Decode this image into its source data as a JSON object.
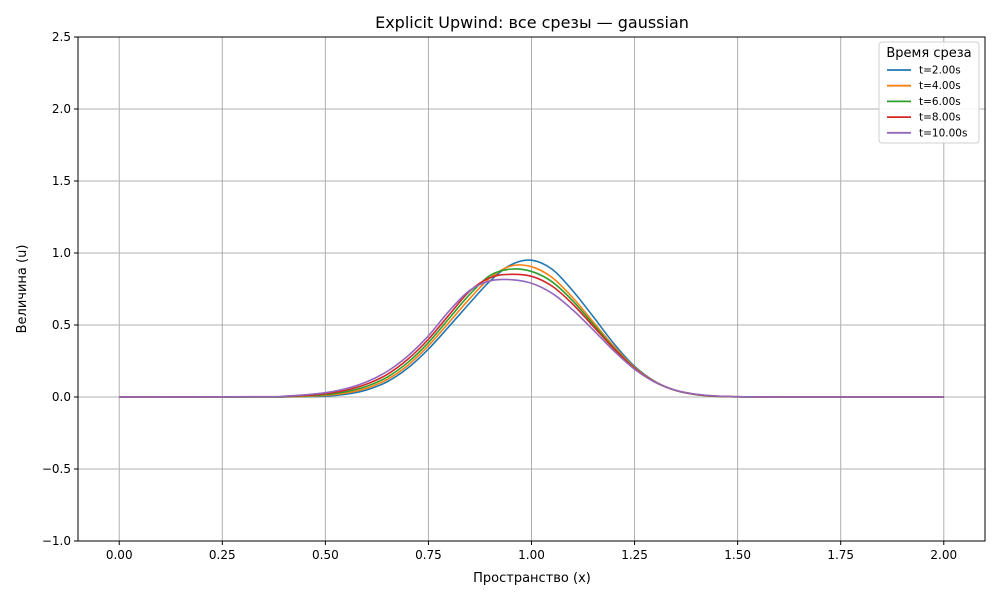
{
  "chart_data": {
    "type": "line",
    "title": "Explicit Upwind: все срезы — gaussian",
    "xlabel": "Пространство (x)",
    "ylabel": "Величина (u)",
    "xlim": [
      -0.1,
      2.1
    ],
    "ylim": [
      -1.0,
      2.5
    ],
    "xticks": [
      "0.00",
      "0.25",
      "0.50",
      "0.75",
      "1.00",
      "1.25",
      "1.50",
      "1.75",
      "2.00"
    ],
    "yticks": [
      "−1.0",
      "−0.5",
      "0.0",
      "0.5",
      "1.0",
      "1.5",
      "2.0",
      "2.5"
    ],
    "grid": true,
    "legend": {
      "title": "Время среза",
      "placement": "top-right"
    },
    "x": [
      0.0,
      0.35,
      0.4,
      0.45,
      0.5,
      0.55,
      0.6,
      0.65,
      0.7,
      0.75,
      0.8,
      0.85,
      0.9,
      0.95,
      1.0,
      1.05,
      1.1,
      1.15,
      1.2,
      1.25,
      1.3,
      1.35,
      1.4,
      1.45,
      1.5,
      1.55,
      1.6,
      2.0
    ],
    "series": [
      {
        "name": "t=2.00s",
        "color": "#1f77b4",
        "values": [
          0.0,
          0.0,
          0.0,
          0.002,
          0.006,
          0.019,
          0.049,
          0.106,
          0.201,
          0.333,
          0.49,
          0.652,
          0.807,
          0.918,
          0.95,
          0.887,
          0.738,
          0.557,
          0.37,
          0.213,
          0.107,
          0.045,
          0.016,
          0.005,
          0.001,
          0.0,
          0.0,
          0.0
        ]
      },
      {
        "name": "t=4.00s",
        "color": "#ff7f0e",
        "values": [
          0.0,
          0.0,
          0.002,
          0.005,
          0.012,
          0.028,
          0.061,
          0.122,
          0.22,
          0.356,
          0.518,
          0.683,
          0.828,
          0.91,
          0.905,
          0.83,
          0.69,
          0.52,
          0.35,
          0.205,
          0.105,
          0.045,
          0.017,
          0.005,
          0.001,
          0.0,
          0.0,
          0.0
        ]
      },
      {
        "name": "t=6.00s",
        "color": "#2ca02c",
        "values": [
          0.0,
          0.0,
          0.003,
          0.008,
          0.017,
          0.037,
          0.074,
          0.138,
          0.24,
          0.378,
          0.545,
          0.712,
          0.845,
          0.888,
          0.872,
          0.8,
          0.668,
          0.505,
          0.34,
          0.2,
          0.103,
          0.045,
          0.017,
          0.005,
          0.001,
          0.0,
          0.0,
          0.0
        ]
      },
      {
        "name": "t=8.00s",
        "color": "#d62728",
        "values": [
          0.0,
          0.001,
          0.004,
          0.011,
          0.023,
          0.047,
          0.089,
          0.157,
          0.262,
          0.401,
          0.57,
          0.735,
          0.83,
          0.852,
          0.838,
          0.77,
          0.645,
          0.49,
          0.335,
          0.198,
          0.103,
          0.046,
          0.018,
          0.006,
          0.002,
          0.0,
          0.0,
          0.0
        ]
      },
      {
        "name": "t=10.00s",
        "color": "#9467bd",
        "values": [
          0.0,
          0.002,
          0.006,
          0.015,
          0.03,
          0.058,
          0.105,
          0.178,
          0.285,
          0.425,
          0.597,
          0.74,
          0.807,
          0.815,
          0.79,
          0.72,
          0.605,
          0.465,
          0.32,
          0.193,
          0.102,
          0.047,
          0.019,
          0.007,
          0.002,
          0.001,
          0.0,
          0.0
        ]
      }
    ]
  }
}
